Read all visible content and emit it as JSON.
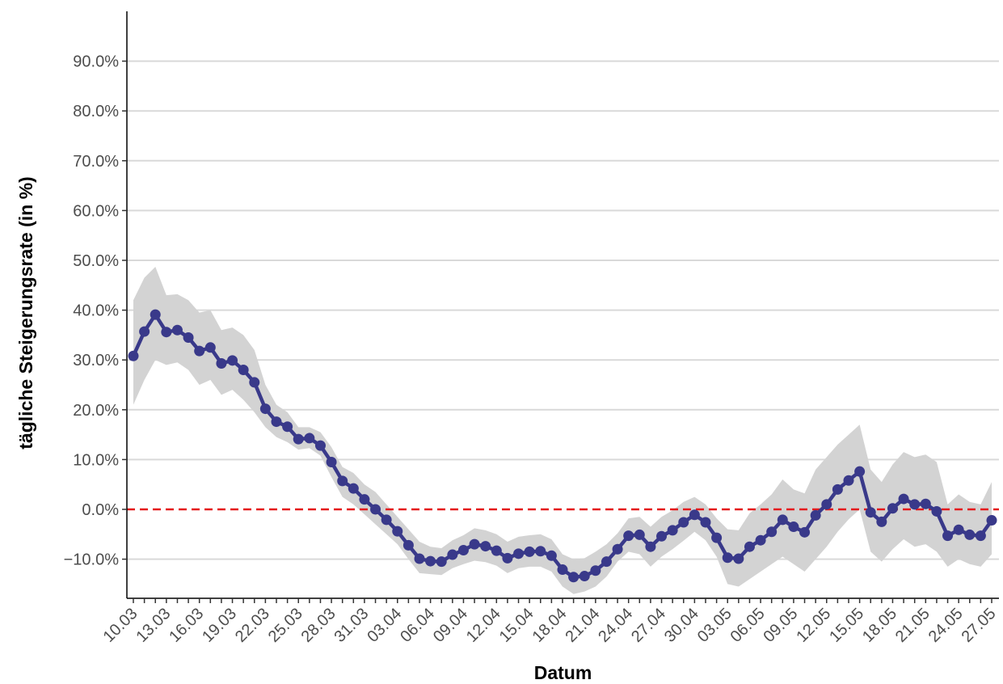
{
  "chart_data": {
    "type": "line",
    "xlabel": "Datum",
    "ylabel": "tägliche Steigerungsrate (in %)",
    "y_unit": "%",
    "ylim": [
      -17.5,
      100
    ],
    "y_ticks": [
      -10,
      0,
      10,
      20,
      30,
      40,
      50,
      60,
      70,
      80,
      90
    ],
    "y_tick_labels": [
      "−10.0%",
      "0.0%",
      "10.0%",
      "20.0%",
      "30.0%",
      "40.0%",
      "50.0%",
      "60.0%",
      "70.0%",
      "80.0%",
      "90.0%"
    ],
    "x_start": "2020-03-10",
    "x_end": "2020-05-27",
    "x_tick_labels": [
      "10.03",
      "13.03",
      "16.03",
      "19.03",
      "22.03",
      "25.03",
      "28.03",
      "31.03",
      "03.04",
      "06.04",
      "09.04",
      "12.04",
      "15.04",
      "18.04",
      "21.04",
      "24.04",
      "27.04",
      "30.04",
      "03.05",
      "06.05",
      "09.05",
      "12.05",
      "15.05",
      "18.05",
      "21.05",
      "24.05",
      "27.05"
    ],
    "reference_line": {
      "y": 0,
      "style": "dashed",
      "color": "#e41a1c"
    },
    "grid": "horizontal",
    "series_color": "#39398a",
    "band_color": "#d3d3d3",
    "series": [
      {
        "values": [
          30.8,
          35.7,
          39.1,
          35.6,
          36.0,
          34.5,
          31.8,
          32.5,
          29.3,
          29.9,
          28.0,
          25.5,
          20.2,
          17.6,
          16.6,
          14.1,
          14.3,
          12.8,
          9.5,
          5.7,
          4.2,
          2.0,
          0.0,
          -2.1,
          -4.4,
          -7.2,
          -9.9,
          -10.4,
          -10.5,
          -9.1,
          -8.2,
          -7.0,
          -7.4,
          -8.3,
          -9.8,
          -8.9,
          -8.5,
          -8.4,
          -9.3,
          -12.1,
          -13.6,
          -13.4,
          -12.3,
          -10.5,
          -8.0,
          -5.3,
          -5.1,
          -7.5,
          -5.4,
          -4.2,
          -2.6,
          -1.1,
          -2.6,
          -5.7,
          -9.7,
          -9.9,
          -7.5,
          -6.2,
          -4.5,
          -2.1,
          -3.5,
          -4.6,
          -1.2,
          1.0,
          4.0,
          5.8,
          7.6,
          -0.6,
          -2.5,
          0.2,
          2.1,
          1.0,
          1.1,
          -0.4,
          -5.3,
          -4.1,
          -5.1,
          -5.3,
          -2.2
        ],
        "lower": [
          21.0,
          26.0,
          30.0,
          29.0,
          29.5,
          28.0,
          25.0,
          26.0,
          23.0,
          24.0,
          22.0,
          19.5,
          16.5,
          14.5,
          13.5,
          12.0,
          12.3,
          10.8,
          6.5,
          2.5,
          1.0,
          -1.0,
          -3.0,
          -5.0,
          -7.0,
          -10.0,
          -12.8,
          -13.0,
          -13.2,
          -11.8,
          -11.0,
          -10.3,
          -10.6,
          -11.3,
          -12.8,
          -11.8,
          -11.5,
          -11.5,
          -12.5,
          -15.5,
          -17.0,
          -16.5,
          -15.5,
          -13.5,
          -10.5,
          -8.5,
          -9.0,
          -11.5,
          -9.5,
          -8.0,
          -6.3,
          -4.5,
          -6.2,
          -9.5,
          -15.0,
          -15.5,
          -14.0,
          -12.5,
          -11.0,
          -9.5,
          -11.0,
          -12.5,
          -10.0,
          -7.5,
          -4.5,
          -2.0,
          0.0,
          -8.5,
          -10.5,
          -8.0,
          -6.0,
          -7.5,
          -7.0,
          -8.5,
          -11.5,
          -10.0,
          -11.0,
          -11.5,
          -9.0
        ],
        "upper": [
          42.0,
          46.5,
          48.7,
          43.0,
          43.2,
          42.0,
          39.5,
          40.0,
          36.0,
          36.5,
          35.0,
          32.0,
          25.0,
          21.0,
          19.5,
          16.5,
          16.5,
          15.5,
          12.5,
          8.5,
          7.3,
          5.0,
          3.5,
          1.0,
          -1.5,
          -4.0,
          -6.5,
          -7.5,
          -7.8,
          -6.2,
          -5.2,
          -3.8,
          -4.2,
          -5.0,
          -6.5,
          -5.5,
          -5.2,
          -5.0,
          -6.0,
          -9.0,
          -10.0,
          -9.8,
          -8.5,
          -7.0,
          -4.8,
          -1.8,
          -1.5,
          -3.5,
          -1.5,
          -0.2,
          1.5,
          2.5,
          1.0,
          -1.8,
          -4.0,
          -4.2,
          -0.8,
          1.0,
          3.0,
          6.0,
          4.0,
          3.2,
          8.0,
          10.5,
          13.0,
          15.0,
          17.0,
          8.0,
          5.5,
          9.0,
          11.5,
          10.5,
          11.0,
          9.5,
          1.0,
          3.0,
          1.5,
          1.0,
          5.5
        ]
      }
    ]
  }
}
